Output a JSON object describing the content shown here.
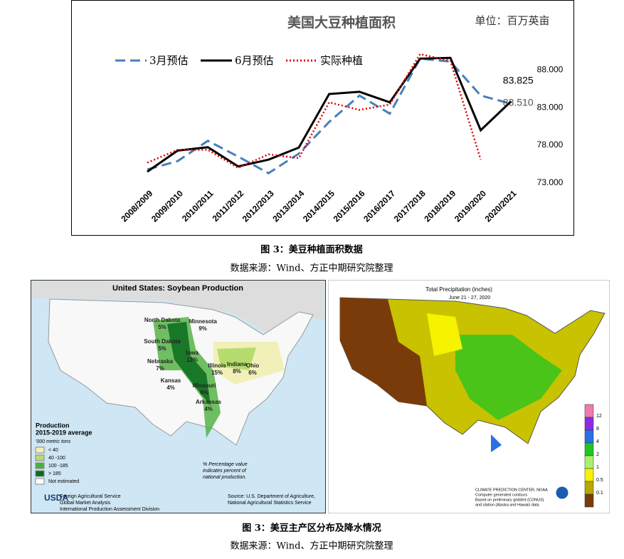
{
  "chart_data": {
    "type": "line",
    "title": "美国大豆种植面积",
    "unit_note": "单位：百万英亩",
    "categories": [
      "2008/2009",
      "2009/2010",
      "2010/2011",
      "2011/2012",
      "2012/2013",
      "2013/2014",
      "2014/2015",
      "2015/2016",
      "2016/2017",
      "2017/2018",
      "2018/2019",
      "2019/2020",
      "2020/2021"
    ],
    "series": [
      {
        "name": "3月预估",
        "color": "#4a7ebb",
        "style": "dashed",
        "values": [
          74.8,
          75.9,
          78.6,
          76.5,
          74.3,
          76.9,
          81.1,
          84.6,
          82.2,
          89.5,
          89.1,
          84.6,
          83.51
        ],
        "value_labels": [
          null,
          null,
          null,
          null,
          null,
          null,
          null,
          null,
          null,
          null,
          null,
          null,
          "83.510"
        ]
      },
      {
        "name": "6月预估",
        "color": "#000000",
        "style": "solid",
        "values": [
          74.5,
          77.3,
          77.75,
          75.2,
          76.1,
          77.7,
          84.8,
          85.1,
          83.7,
          89.5,
          89.6,
          80.0,
          83.825
        ]
      },
      {
        "name": "实际种植",
        "color": "#e00000",
        "style": "dotted",
        "values": [
          75.7,
          77.4,
          77.4,
          75.0,
          76.8,
          76.3,
          83.7,
          82.7,
          83.4,
          90.1,
          89.2,
          76.1,
          null
        ]
      }
    ],
    "ylim": [
      73,
      90
    ],
    "yticks": [
      {
        "value": 73,
        "label": "73.000"
      },
      {
        "value": 78,
        "label": "78.000"
      },
      {
        "value": 83,
        "label": "83.000"
      },
      {
        "value": 88,
        "label": "88.000"
      }
    ],
    "grid": false
  },
  "caption1": {
    "title": "图 3：美豆种植面积数据",
    "source": "数据来源：Wind、方正中期研究院整理"
  },
  "map_left": {
    "title": "United States: Soybean Production",
    "states": [
      "North Dakota",
      "5%",
      "Minnesota",
      "9%",
      "South Dakota",
      "5%",
      "Iowa",
      "13%",
      "Nebraska",
      "7%",
      "Illinois",
      "15%",
      "Indiana",
      "8%",
      "Ohio",
      "6%",
      "Kansas",
      "4%",
      "Missouri",
      "6%",
      "Arkansas",
      "4%"
    ],
    "legend_title": "Production",
    "legend_subtitle": "2015-2019 average",
    "legend_unit": "'000 metric tons",
    "legend": [
      {
        "label": "< 40",
        "color": "#f0f0b8"
      },
      {
        "label": "40 -100",
        "color": "#b6dc6e"
      },
      {
        "label": "100 -185",
        "color": "#4caf3c"
      },
      {
        "label": "> 185",
        "color": "#0b6b1e"
      },
      {
        "label": "Not estimated",
        "color": "#ffffff"
      }
    ],
    "note": [
      "% Percentage value",
      "indicates percent of",
      "national production."
    ],
    "logo": "USDA",
    "agency": [
      "Foreign Agricultural Service",
      "Global Market Analysis",
      "International Production Assessment Division"
    ],
    "source": [
      "Source: U.S. Department of Agriculture,",
      "National Agricultural Statistics Service"
    ]
  },
  "map_right": {
    "title": "Total Precipitation (inches)",
    "subtitle": "June 21 - 27, 2020",
    "legend": [
      {
        "label": "12",
        "color": "#f07ab0"
      },
      {
        "label": "8",
        "color": "#8a2be2"
      },
      {
        "label": "4",
        "color": "#2a70e0"
      },
      {
        "label": "2",
        "color": "#22c422"
      },
      {
        "label": "1",
        "color": "#a8f070"
      },
      {
        "label": "0.5",
        "color": "#f6f200"
      },
      {
        "label": "0.1",
        "color": "#b8a800"
      },
      {
        "label": "",
        "color": "#7a3b0a"
      }
    ],
    "credits": [
      "CLIMATE PREDICTION CENTER, NOAA",
      "Computer generated contours",
      "Based on preliminary gridded (CONUS)",
      "and station (Alaska and Hawaii) data"
    ]
  },
  "caption2": {
    "title": "图 3：美豆主产区分布及降水情况",
    "source": "数据来源：Wind、方正中期研究院整理"
  }
}
